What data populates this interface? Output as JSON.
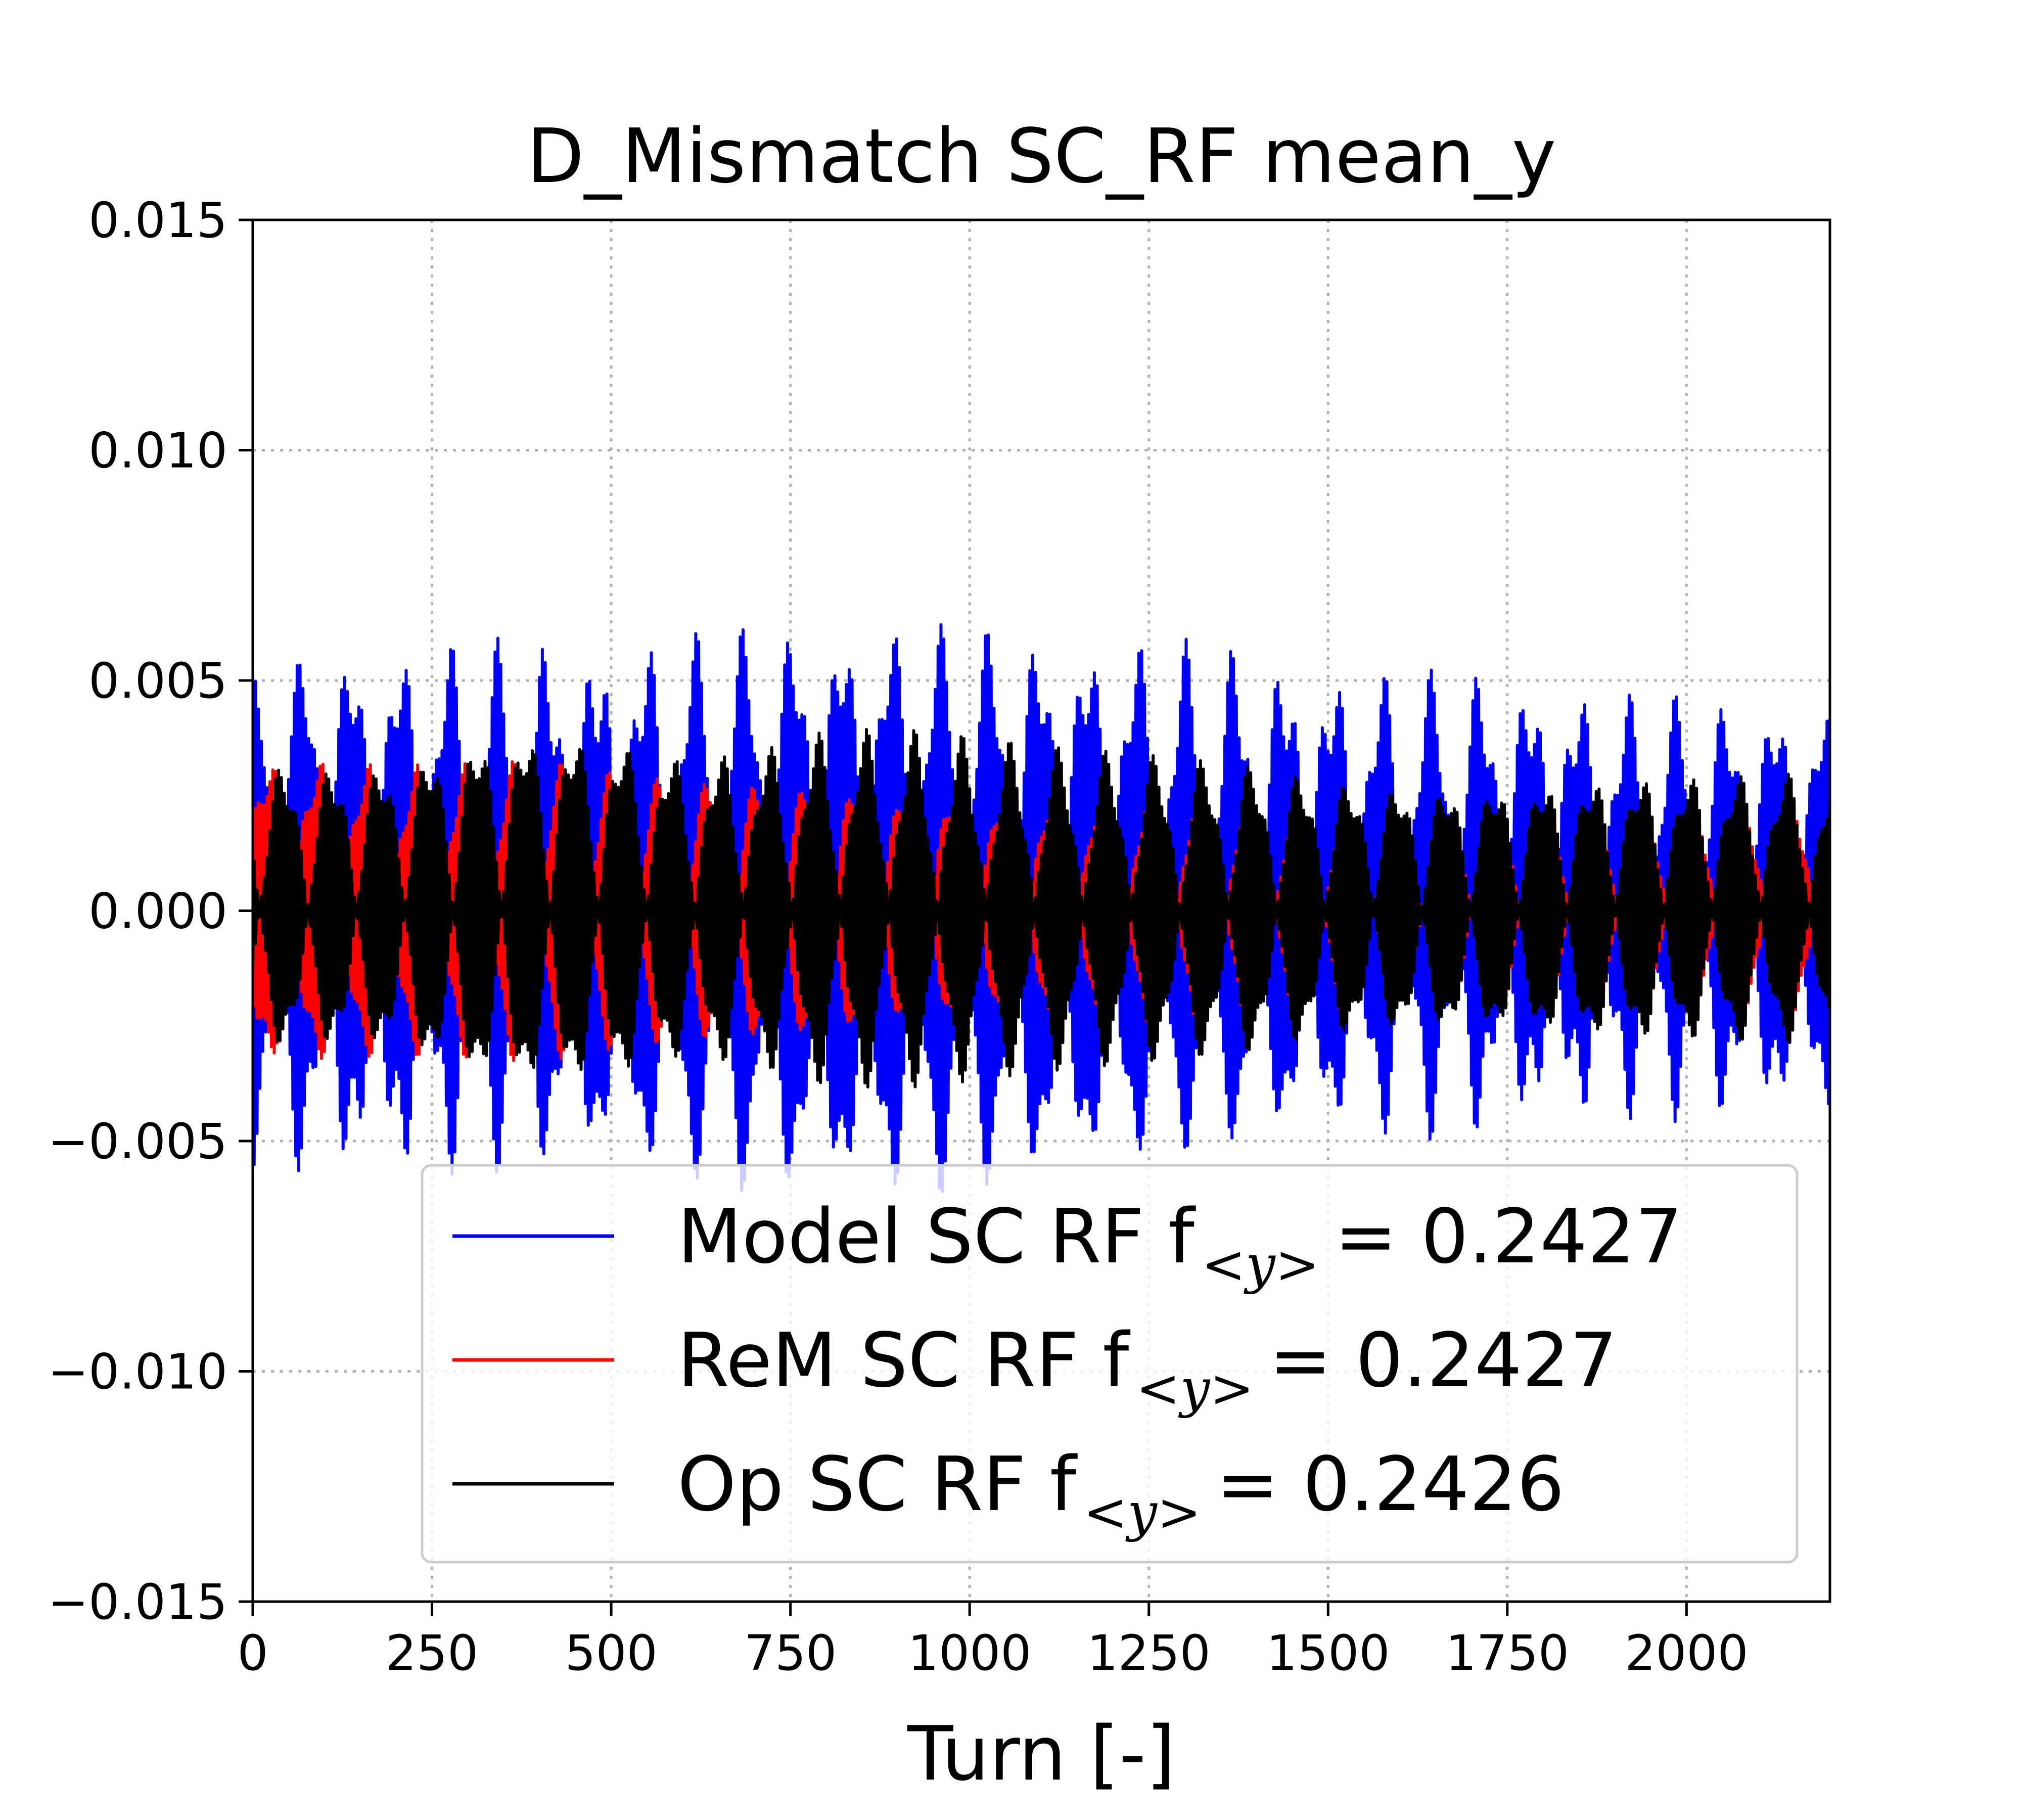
{
  "chart_data": {
    "type": "line",
    "title": "D_Mismatch SC_RF mean_y",
    "xlabel": "Turn [-]",
    "ylabel": "",
    "xlim": [
      0,
      2200
    ],
    "ylim": [
      -0.015,
      0.015
    ],
    "xticks": [
      0,
      250,
      500,
      750,
      1000,
      1250,
      1500,
      1750,
      2000
    ],
    "xtick_labels": [
      "0",
      "250",
      "500",
      "750",
      "1000",
      "1250",
      "1500",
      "1750",
      "2000"
    ],
    "yticks": [
      0.015,
      0.01,
      0.005,
      0.0,
      -0.005,
      -0.01,
      -0.015
    ],
    "ytick_labels": [
      "0.015",
      "0.010",
      "0.005",
      "0.000",
      "−0.005",
      "−0.010",
      "−0.015"
    ],
    "grid": true,
    "legend_position": "lower-right",
    "series": [
      {
        "name": "Model SC RF",
        "freq_label": "0.2427",
        "color": "#0000ff",
        "tune": 0.2427,
        "envelope_x": [
          0,
          100,
          200,
          300,
          400,
          500,
          600,
          700,
          800,
          900,
          1000,
          1100,
          1200,
          1300,
          1400,
          1500,
          1600,
          1700,
          1800,
          1900,
          2000,
          2100,
          2200
        ],
        "envelope_upper": [
          0.0052,
          0.0058,
          0.0058,
          0.0059,
          0.006,
          0.0061,
          0.0061,
          0.0062,
          0.0063,
          0.0063,
          0.0062,
          0.0061,
          0.006,
          0.0059,
          0.0058,
          0.0054,
          0.0052,
          0.0053,
          0.0051,
          0.0048,
          0.0047,
          0.0046,
          0.0045
        ],
        "envelope_lower": [
          -0.0056,
          -0.006,
          -0.006,
          -0.0058,
          -0.0056,
          -0.0055,
          -0.0058,
          -0.0062,
          -0.0063,
          -0.0063,
          -0.0061,
          -0.0058,
          -0.0055,
          -0.0052,
          -0.005,
          -0.0048,
          -0.005,
          -0.005,
          -0.0048,
          -0.0046,
          -0.0046,
          -0.0046,
          -0.0045
        ],
        "baseline_upper": [
          0.0042,
          0.0041,
          0.004,
          0.0038,
          0.0036,
          0.0036,
          0.004,
          0.0043,
          0.0044,
          0.0044,
          0.0043,
          0.0041,
          0.004,
          0.0038,
          0.0036,
          0.0034,
          0.0034,
          0.0034,
          0.0033,
          0.003,
          0.003,
          0.0031,
          0.0032
        ],
        "baseline_lower": [
          -0.0038,
          -0.0036,
          -0.0035,
          -0.0033,
          -0.0036,
          -0.004,
          -0.0041,
          -0.0043,
          -0.0044,
          -0.0044,
          -0.0043,
          -0.0041,
          -0.004,
          -0.0038,
          -0.0036,
          -0.0033,
          -0.003,
          -0.0028,
          -0.0027,
          -0.0025,
          -0.0025,
          -0.0027,
          -0.003
        ]
      },
      {
        "name": "ReM SC RF",
        "freq_label": "0.2427",
        "color": "#ff0000",
        "tune": 0.2427,
        "envelope_x": [
          0,
          100,
          200,
          300,
          400,
          500,
          600,
          700,
          800,
          900,
          1000,
          1100,
          1200,
          1300,
          1400,
          1500,
          1600,
          1700,
          1800,
          1900,
          2000,
          2100,
          2200
        ],
        "envelope_upper": [
          0.0034,
          0.0034,
          0.0032,
          0.0032,
          0.0033,
          0.0031,
          0.003,
          0.0031,
          0.0032,
          0.0031,
          0.0031,
          0.003,
          0.003,
          0.003,
          0.0029,
          0.0028,
          0.0027,
          0.0026,
          0.0025,
          0.0024,
          0.0024,
          0.0025,
          0.0026
        ],
        "envelope_lower": [
          -0.0034,
          -0.0034,
          -0.0032,
          -0.0032,
          -0.0033,
          -0.0031,
          -0.003,
          -0.0031,
          -0.0032,
          -0.0031,
          -0.0031,
          -0.003,
          -0.003,
          -0.003,
          -0.0029,
          -0.0028,
          -0.0027,
          -0.0026,
          -0.0025,
          -0.0024,
          -0.0024,
          -0.0025,
          -0.0026
        ]
      },
      {
        "name": "Op SC RF",
        "freq_label": "0.2426",
        "color": "#000000",
        "tune": 0.2426,
        "envelope_x": [
          0,
          100,
          200,
          300,
          400,
          500,
          600,
          700,
          800,
          900,
          1000,
          1100,
          1200,
          1300,
          1400,
          1500,
          1600,
          1700,
          1800,
          1900,
          2000,
          2100,
          2200
        ],
        "envelope_upper": [
          0.0033,
          0.0033,
          0.0034,
          0.004,
          0.0042,
          0.004,
          0.0035,
          0.0036,
          0.004,
          0.004,
          0.0038,
          0.0036,
          0.0035,
          0.0034,
          0.0033,
          0.003,
          0.0029,
          0.0029,
          0.003,
          0.0031,
          0.0031,
          0.0031,
          0.0031
        ],
        "envelope_lower": [
          -0.0031,
          -0.0031,
          -0.0032,
          -0.0039,
          -0.0041,
          -0.0039,
          -0.0034,
          -0.0035,
          -0.0039,
          -0.0039,
          -0.0037,
          -0.0035,
          -0.0034,
          -0.0033,
          -0.0032,
          -0.0029,
          -0.0028,
          -0.0028,
          -0.0029,
          -0.003,
          -0.003,
          -0.003,
          -0.003
        ]
      }
    ]
  }
}
